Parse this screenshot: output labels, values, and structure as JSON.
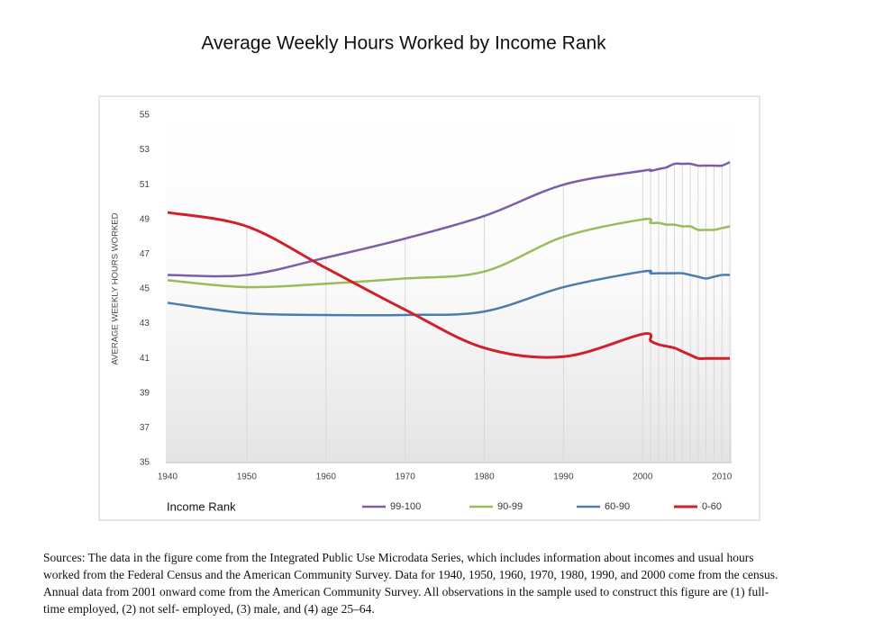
{
  "chart_data": {
    "type": "line",
    "title": "Average Weekly Hours Worked by Income Rank",
    "y_label": "AVERAGE WEEKLY HOURS WORKED",
    "legend_title": "Income Rank",
    "x": [
      1940,
      1950,
      1960,
      1970,
      1980,
      1990,
      2000,
      2001,
      2002,
      2003,
      2004,
      2005,
      2006,
      2007,
      2008,
      2009,
      2010,
      2011
    ],
    "series": [
      {
        "name": "99-100",
        "color": "#7b5ea7",
        "values": [
          45.8,
          45.8,
          46.8,
          47.9,
          49.2,
          51.0,
          51.8,
          51.8,
          51.9,
          52.0,
          52.2,
          52.2,
          52.2,
          52.1,
          52.1,
          52.1,
          52.1,
          52.3
        ]
      },
      {
        "name": "90-99",
        "color": "#9bbb59",
        "values": [
          45.5,
          45.1,
          45.3,
          45.6,
          46.0,
          48.0,
          49.0,
          48.8,
          48.8,
          48.7,
          48.7,
          48.6,
          48.6,
          48.4,
          48.4,
          48.4,
          48.5,
          48.6
        ]
      },
      {
        "name": "60-90",
        "color": "#4a7cad",
        "values": [
          44.2,
          43.6,
          43.5,
          43.5,
          43.7,
          45.1,
          46.0,
          45.9,
          45.9,
          45.9,
          45.9,
          45.9,
          45.8,
          45.7,
          45.6,
          45.7,
          45.8,
          45.8
        ]
      },
      {
        "name": "0-60",
        "color": "#d0202a",
        "values": [
          49.4,
          48.6,
          46.2,
          43.8,
          41.6,
          41.1,
          42.4,
          42.0,
          41.8,
          41.7,
          41.6,
          41.4,
          41.2,
          41.0,
          41.0,
          41.0,
          41.0,
          41.0
        ]
      }
    ],
    "xlim": [
      1940,
      2011
    ],
    "xticks": [
      1940,
      1950,
      1960,
      1970,
      1980,
      1990,
      2000,
      2010
    ],
    "ylim": [
      35,
      55
    ],
    "yticks": [
      35,
      37,
      39,
      41,
      43,
      45,
      47,
      49,
      51,
      53,
      55
    ],
    "legend": "bottom",
    "smooth": true
  },
  "sources": [
    "Sources:  The data in the figure come from the Integrated Public Use Microdata Series, which includes information about incomes and usual hours",
    "worked from the Federal Census and the American Community Survey. Data for 1940, 1950, 1960, 1970, 1980, 1990, and 2000 come from the census.",
    "Annual data from 2001 onward come from the American Community Survey. All observations in the sample used to construct this figure are (1) full-",
    "time employed, (2) not self- employed, (3) male, and (4) age 25–64."
  ]
}
